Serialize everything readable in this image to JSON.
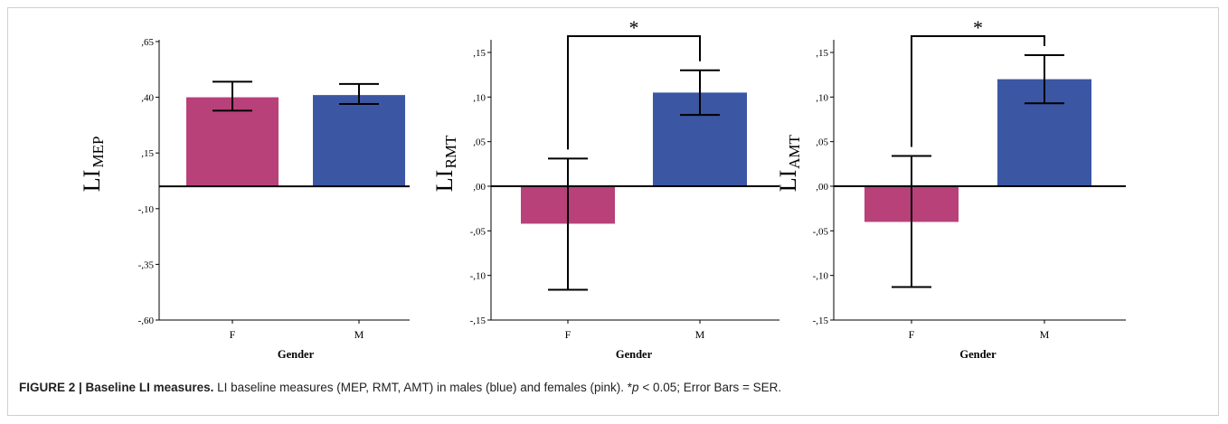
{
  "colors": {
    "female": "#b8417a",
    "male": "#3b56a3",
    "axis": "#000000",
    "frame": "#cfcfcf"
  },
  "chart_data": [
    {
      "type": "bar",
      "ylabel": "LI",
      "ylabel_sub": "MEP",
      "xlabel": "Gender",
      "categories": [
        "F",
        "M"
      ],
      "values": [
        0.4,
        0.41
      ],
      "errors": [
        [
          0.34,
          0.47
        ],
        [
          0.37,
          0.46
        ]
      ],
      "ylim": [
        -0.6,
        0.65
      ],
      "yticks": [
        ",65",
        ",40",
        ",15",
        "-,10",
        "-,35",
        "-,60"
      ],
      "ytick_values": [
        0.65,
        0.4,
        0.15,
        -0.1,
        -0.35,
        -0.6
      ],
      "baseline": 0.0,
      "significance": null
    },
    {
      "type": "bar",
      "ylabel": "LI",
      "ylabel_sub": "RMT",
      "xlabel": "Gender",
      "categories": [
        "F",
        "M"
      ],
      "values": [
        -0.042,
        0.105
      ],
      "errors": [
        [
          -0.116,
          0.031
        ],
        [
          0.08,
          0.13
        ]
      ],
      "ylim": [
        -0.15,
        0.165
      ],
      "yticks": [
        ",15",
        ",10",
        ",05",
        ",00",
        "-,05",
        "-,10",
        "-,15"
      ],
      "ytick_values": [
        0.15,
        0.1,
        0.05,
        0.0,
        -0.05,
        -0.1,
        -0.15
      ],
      "baseline": 0.0,
      "significance": "*"
    },
    {
      "type": "bar",
      "ylabel": "LI",
      "ylabel_sub": "AMT",
      "xlabel": "Gender",
      "categories": [
        "F",
        "M"
      ],
      "values": [
        -0.04,
        0.12
      ],
      "errors": [
        [
          -0.113,
          0.034
        ],
        [
          0.093,
          0.147
        ]
      ],
      "ylim": [
        -0.15,
        0.165
      ],
      "yticks": [
        ",15",
        ",10",
        ",05",
        ",00",
        "-,05",
        "-,10",
        "-,15"
      ],
      "ytick_values": [
        0.15,
        0.1,
        0.05,
        0.0,
        -0.05,
        -0.1,
        -0.15
      ],
      "baseline": 0.0,
      "significance": "*"
    }
  ],
  "caption": {
    "label": "FIGURE 2 | Baseline LI measures.",
    "text_1": " LI baseline measures (MEP, RMT, AMT) in males (blue) and females (pink). *",
    "p": "p",
    "text_2": " < 0.05; Error Bars = SER."
  }
}
